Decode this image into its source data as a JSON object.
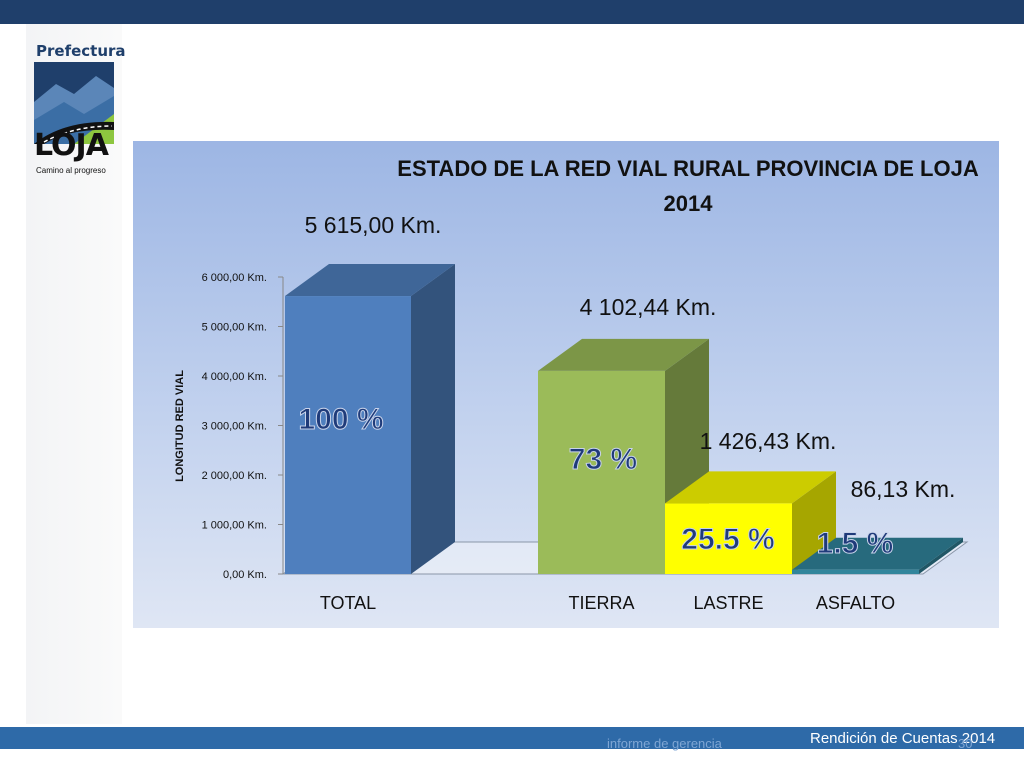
{
  "header": {
    "color": "#1f3f6b"
  },
  "logo": {
    "org": "Prefectura",
    "name": "LOJA",
    "tagline": "Camino al progreso"
  },
  "chart_data": {
    "type": "bar",
    "title_line1": "ESTADO DE LA RED VIAL  RURAL PROVINCIA DE LOJA",
    "title_line2": "2014",
    "ylabel": "LONGITUD RED VIAL",
    "ylim": [
      0,
      6000
    ],
    "yticks": [
      "0,00 Km.",
      "1 000,00 Km.",
      "2 000,00 Km.",
      "3 000,00 Km.",
      "4 000,00 Km.",
      "5 000,00 Km.",
      "6 000,00 Km."
    ],
    "categories": [
      "TOTAL",
      "TIERRA",
      "LASTRE",
      "ASFALTO"
    ],
    "values": [
      5615.0,
      4102.44,
      1426.43,
      86.13
    ],
    "value_labels": [
      "5 615,00 Km.",
      "4 102,44 Km.",
      "1 426,43 Km.",
      "86,13 Km."
    ],
    "percent_labels": [
      "100 %",
      "73 %",
      "25.5 %",
      "1.5 %"
    ],
    "colors": [
      "#4f7fbe",
      "#9bbb59",
      "#ffff00",
      "#31859c"
    ]
  },
  "footer": {
    "faint_text": "informe de gerencia",
    "title": "Rendición de Cuentas 2014",
    "page": "30"
  }
}
